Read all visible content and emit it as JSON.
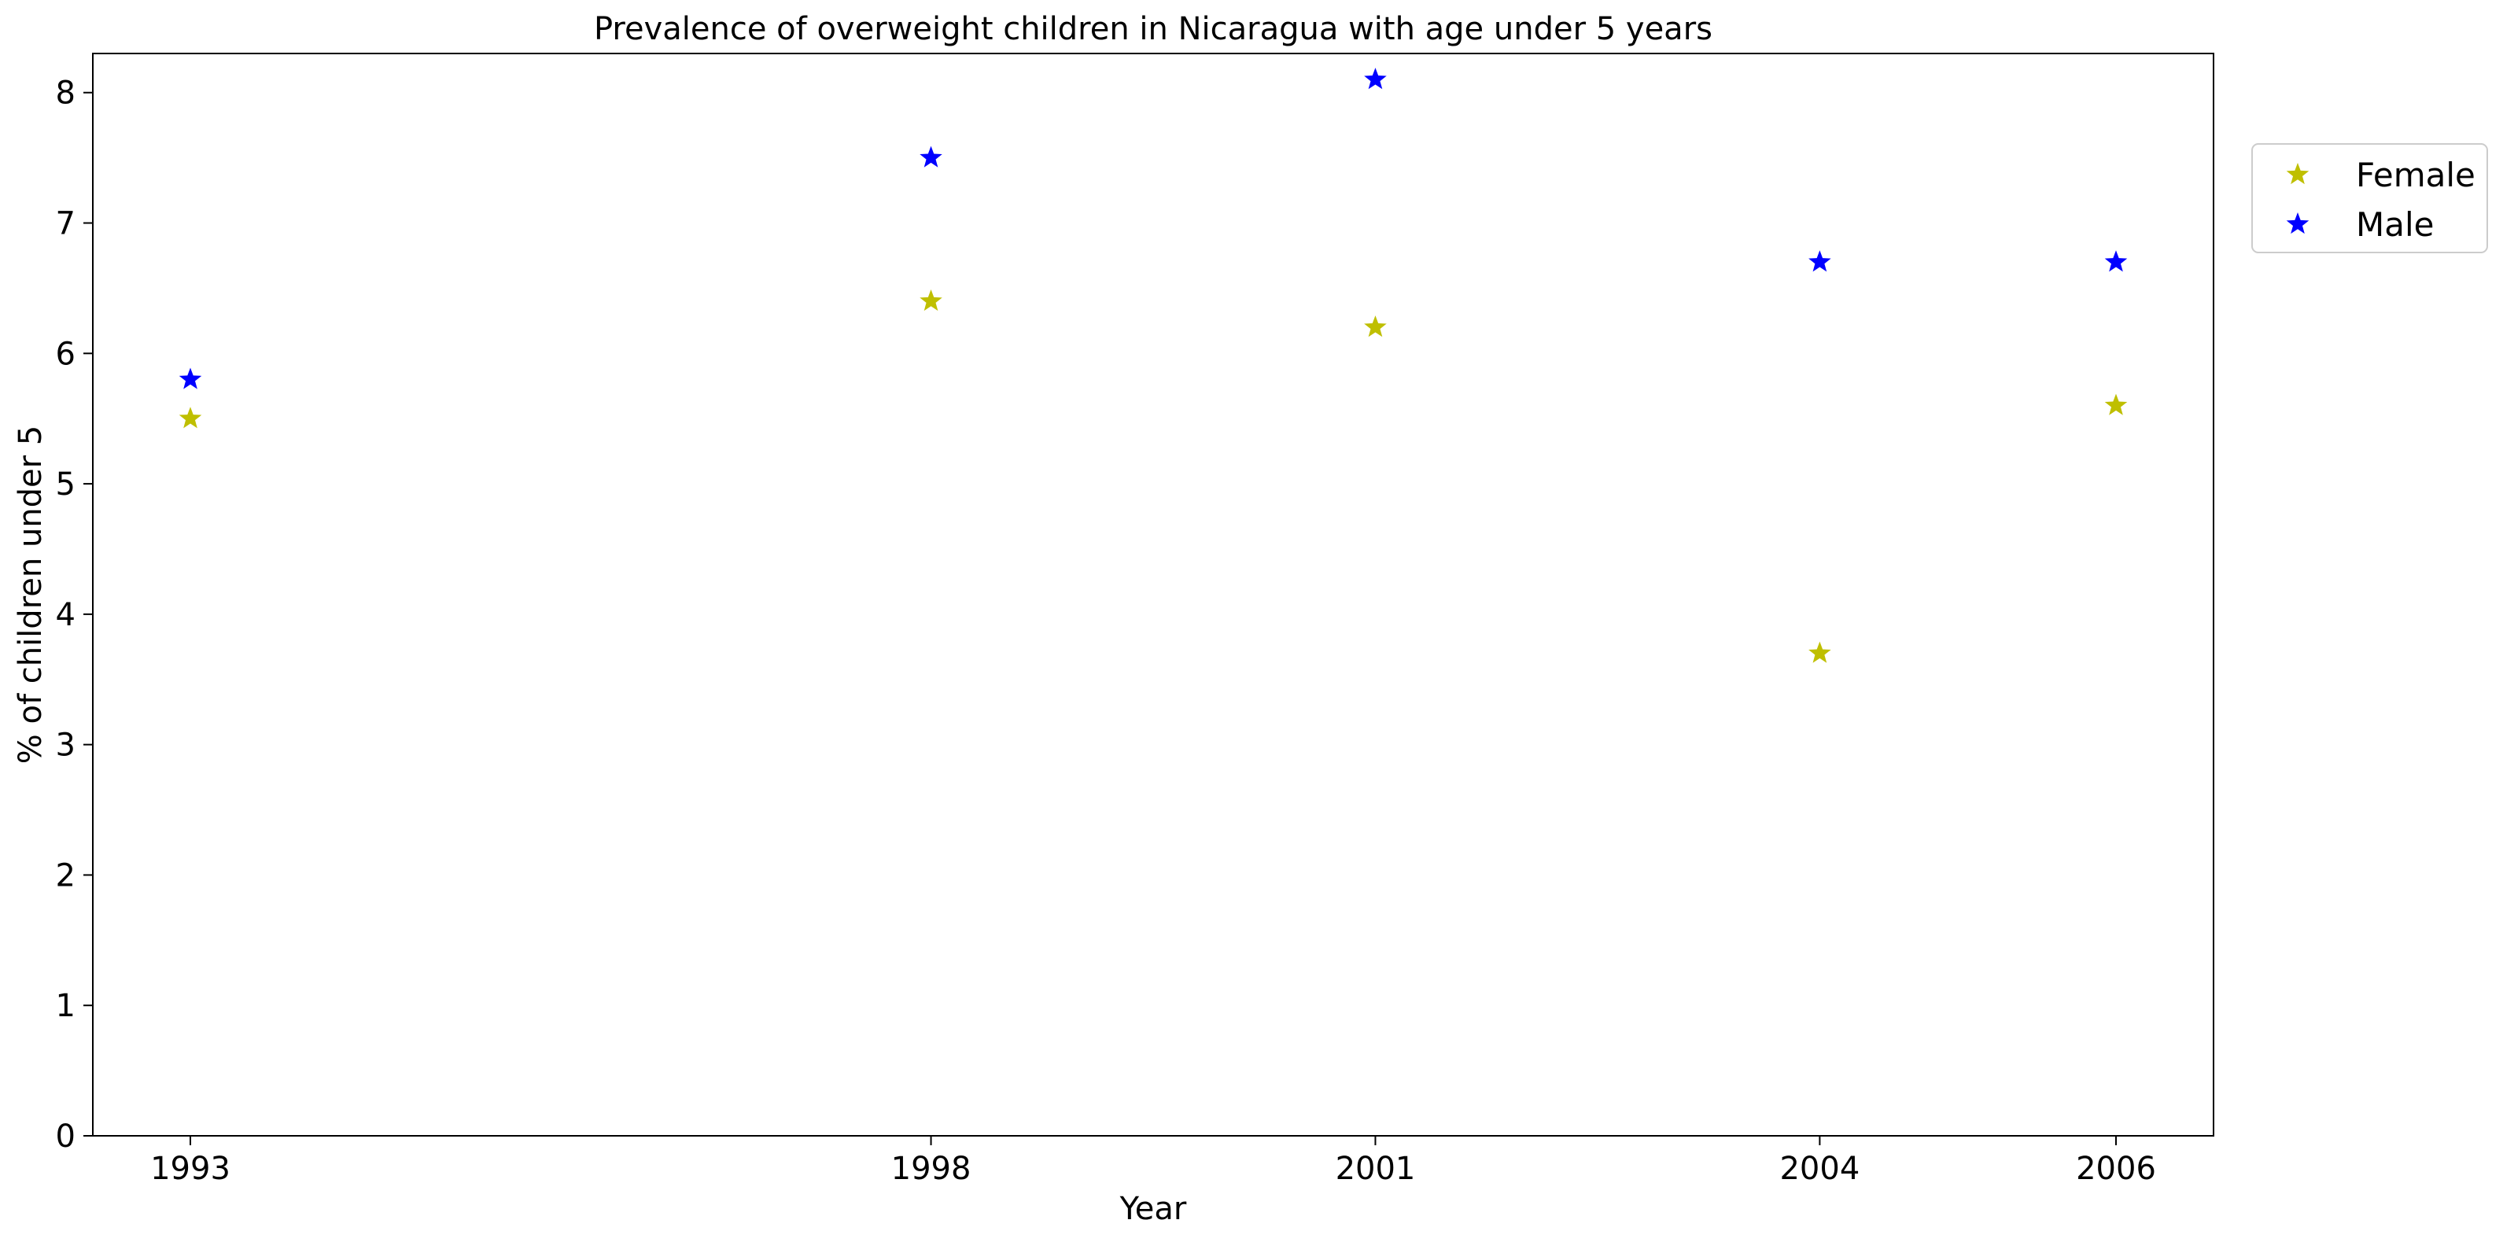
{
  "chart_data": {
    "type": "scatter",
    "title": "Prevalence of overweight children in Nicaragua with age under 5 years",
    "xlabel": "Year",
    "ylabel": "% of children under 5",
    "categories": [
      "1993",
      "1998",
      "2001",
      "2004",
      "2006"
    ],
    "yticks": [
      "0",
      "1",
      "2",
      "3",
      "4",
      "5",
      "6",
      "7",
      "8"
    ],
    "ylim": [
      0,
      8.3
    ],
    "grid": false,
    "legend_position": "outside-top-right",
    "marker": "star",
    "series": [
      {
        "name": "Female",
        "color": "#bfbf00",
        "values": [
          5.5,
          6.4,
          6.2,
          3.7,
          5.6
        ]
      },
      {
        "name": "Male",
        "color": "#0000ff",
        "values": [
          5.8,
          7.5,
          8.1,
          6.7,
          6.7
        ]
      }
    ]
  }
}
